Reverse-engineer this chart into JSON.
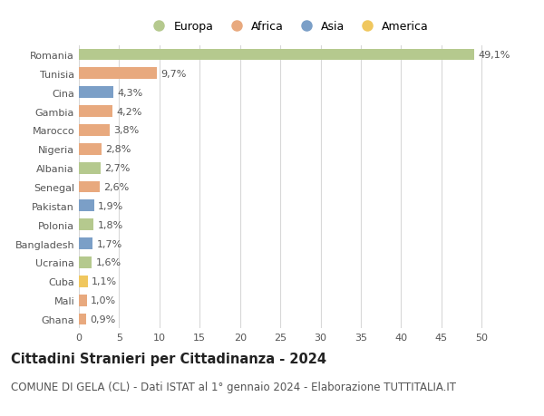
{
  "countries": [
    "Romania",
    "Tunisia",
    "Cina",
    "Gambia",
    "Marocco",
    "Nigeria",
    "Albania",
    "Senegal",
    "Pakistan",
    "Polonia",
    "Bangladesh",
    "Ucraina",
    "Cuba",
    "Mali",
    "Ghana"
  ],
  "values": [
    49.1,
    9.7,
    4.3,
    4.2,
    3.8,
    2.8,
    2.7,
    2.6,
    1.9,
    1.8,
    1.7,
    1.6,
    1.1,
    1.0,
    0.9
  ],
  "labels": [
    "49,1%",
    "9,7%",
    "4,3%",
    "4,2%",
    "3,8%",
    "2,8%",
    "2,7%",
    "2,6%",
    "1,9%",
    "1,8%",
    "1,7%",
    "1,6%",
    "1,1%",
    "1,0%",
    "0,9%"
  ],
  "continents": [
    "Europa",
    "Africa",
    "Asia",
    "Africa",
    "Africa",
    "Africa",
    "Europa",
    "Africa",
    "Asia",
    "Europa",
    "Asia",
    "Europa",
    "America",
    "Africa",
    "Africa"
  ],
  "continent_colors": {
    "Europa": "#b5c98e",
    "Africa": "#e8a97e",
    "Asia": "#7b9fc7",
    "America": "#f0c75e"
  },
  "legend_order": [
    "Europa",
    "Africa",
    "Asia",
    "America"
  ],
  "title": "Cittadini Stranieri per Cittadinanza - 2024",
  "subtitle": "COMUNE DI GELA (CL) - Dati ISTAT al 1° gennaio 2024 - Elaborazione TUTTITALIA.IT",
  "xlim": [
    0,
    52
  ],
  "xticks": [
    0,
    5,
    10,
    15,
    20,
    25,
    30,
    35,
    40,
    45,
    50
  ],
  "background_color": "#ffffff",
  "grid_color": "#d8d8d8",
  "bar_height": 0.62,
  "title_fontsize": 10.5,
  "subtitle_fontsize": 8.5,
  "label_fontsize": 8,
  "tick_fontsize": 8,
  "legend_fontsize": 9
}
